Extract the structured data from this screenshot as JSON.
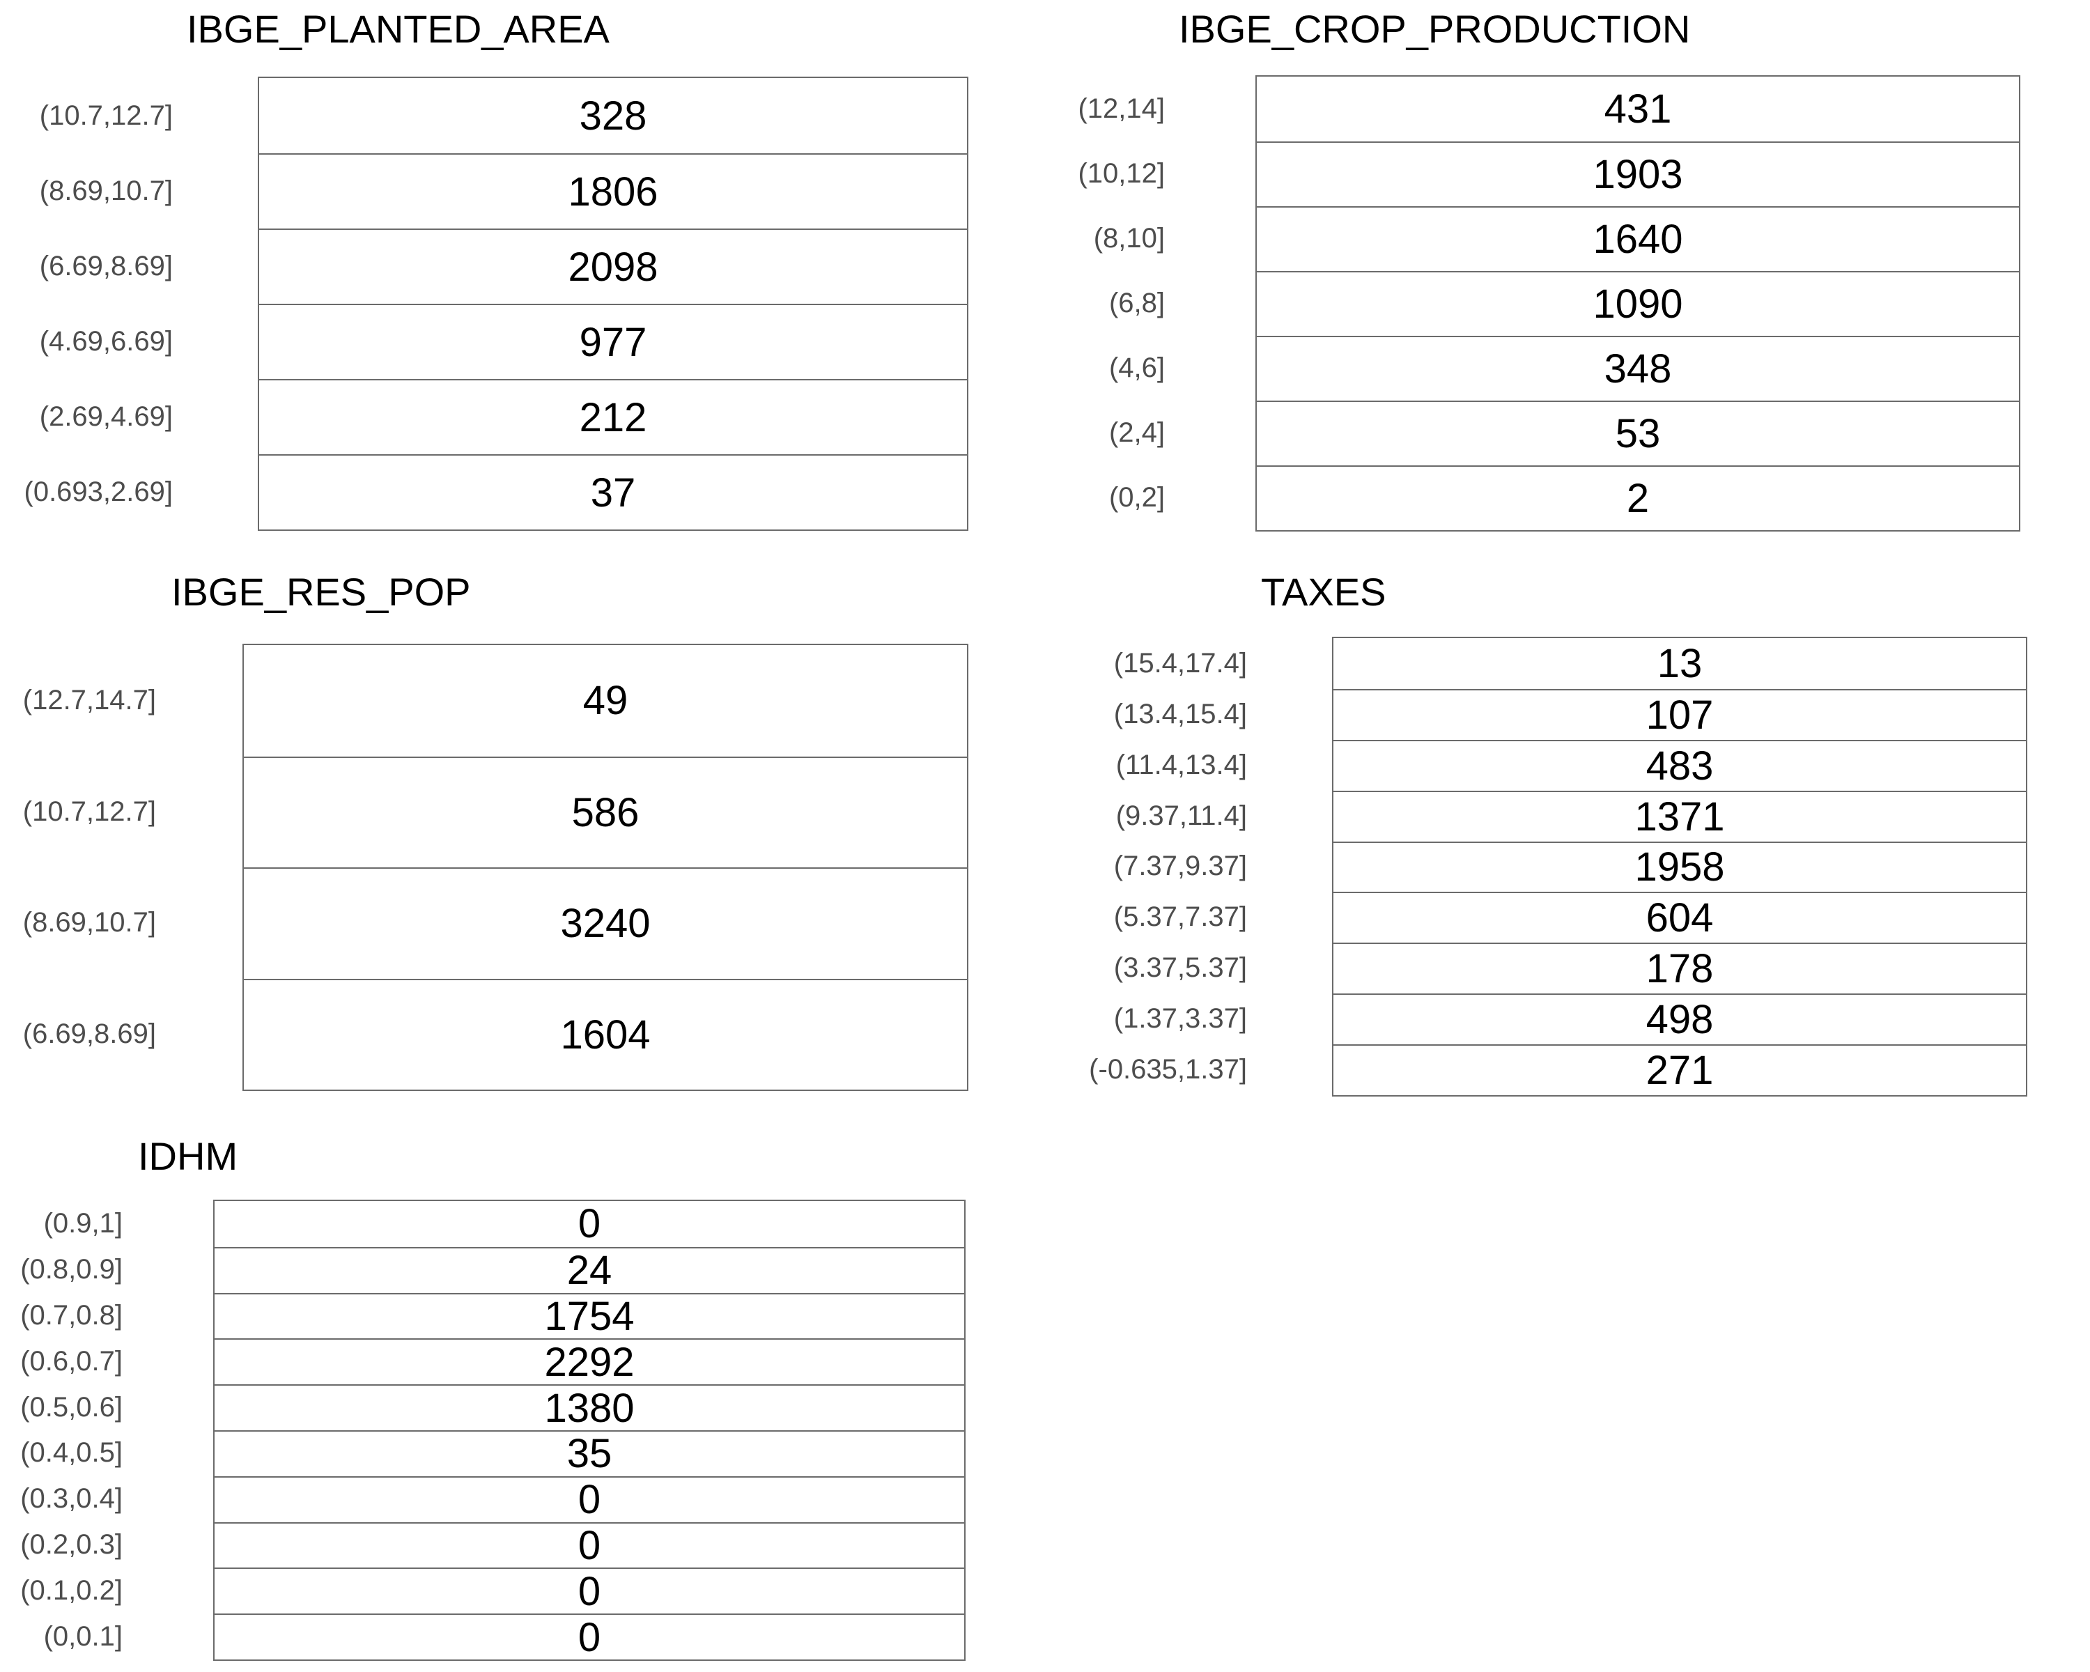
{
  "chart_data": [
    {
      "type": "table",
      "title": "IBGE_PLANTED_AREA",
      "categories": [
        "(10.7,12.7]",
        "(8.69,10.7]",
        "(6.69,8.69]",
        "(4.69,6.69]",
        "(2.69,4.69]",
        "(0.693,2.69]"
      ],
      "values": [
        328,
        1806,
        2098,
        977,
        212,
        37
      ]
    },
    {
      "type": "table",
      "title": "IBGE_CROP_PRODUCTION",
      "categories": [
        "(12,14]",
        "(10,12]",
        "(8,10]",
        "(6,8]",
        "(4,6]",
        "(2,4]",
        "(0,2]"
      ],
      "values": [
        431,
        1903,
        1640,
        1090,
        348,
        53,
        2
      ]
    },
    {
      "type": "table",
      "title": "IBGE_RES_POP",
      "categories": [
        "(12.7,14.7]",
        "(10.7,12.7]",
        "(8.69,10.7]",
        "(6.69,8.69]"
      ],
      "values": [
        49,
        586,
        3240,
        1604
      ]
    },
    {
      "type": "table",
      "title": "TAXES",
      "categories": [
        "(15.4,17.4]",
        "(13.4,15.4]",
        "(11.4,13.4]",
        "(9.37,11.4]",
        "(7.37,9.37]",
        "(5.37,7.37]",
        "(3.37,5.37]",
        "(1.37,3.37]",
        "(-0.635,1.37]"
      ],
      "values": [
        13,
        107,
        483,
        1371,
        1958,
        604,
        178,
        498,
        271
      ]
    },
    {
      "type": "table",
      "title": "IDHM",
      "categories": [
        "(0.9,1]",
        "(0.8,0.9]",
        "(0.7,0.8]",
        "(0.6,0.7]",
        "(0.5,0.6]",
        "(0.4,0.5]",
        "(0.3,0.4]",
        "(0.2,0.3]",
        "(0.1,0.2]",
        "(0,0.1]"
      ],
      "values": [
        0,
        24,
        1754,
        2292,
        1380,
        35,
        0,
        0,
        0,
        0
      ]
    }
  ]
}
